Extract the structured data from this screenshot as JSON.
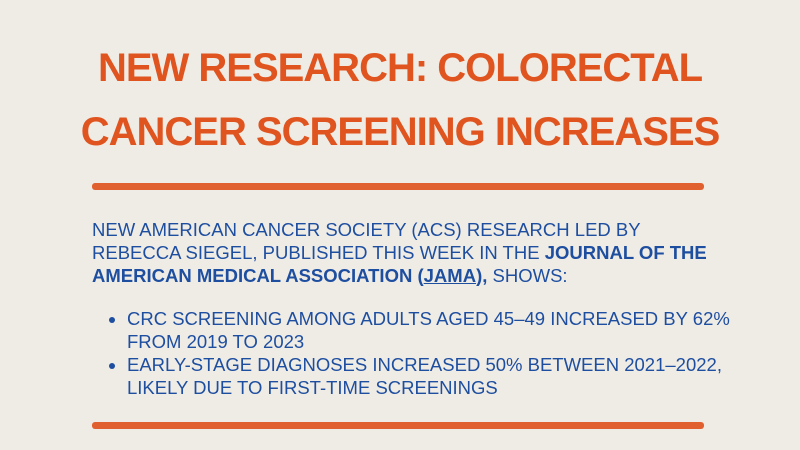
{
  "title": {
    "line1": "NEW RESEARCH: COLORECTAL",
    "line2": "CANCER SCREENING INCREASES"
  },
  "intro": {
    "text_before": "NEW AMERICAN CANCER SOCIETY (ACS) RESEARCH LED BY REBECCA SIEGEL, PUBLISHED THIS WEEK IN THE ",
    "journal_bold": "JOURNAL OF THE AMERICAN MEDICAL ASSOCIATION (",
    "journal_link": "JAMA",
    "journal_close": "),",
    "text_after": " SHOWS:"
  },
  "bullets": [
    "CRC SCREENING AMONG ADULTS AGED 45–49 INCREASED BY 62% FROM 2019 TO 2023",
    "EARLY-STAGE DIAGNOSES INCREASED 50% BETWEEN 2021–2022, LIKELY DUE TO FIRST-TIME SCREENINGS"
  ],
  "colors": {
    "background": "#efece5",
    "accent_orange": "#e0541f",
    "text_blue": "#1e4ea0"
  }
}
